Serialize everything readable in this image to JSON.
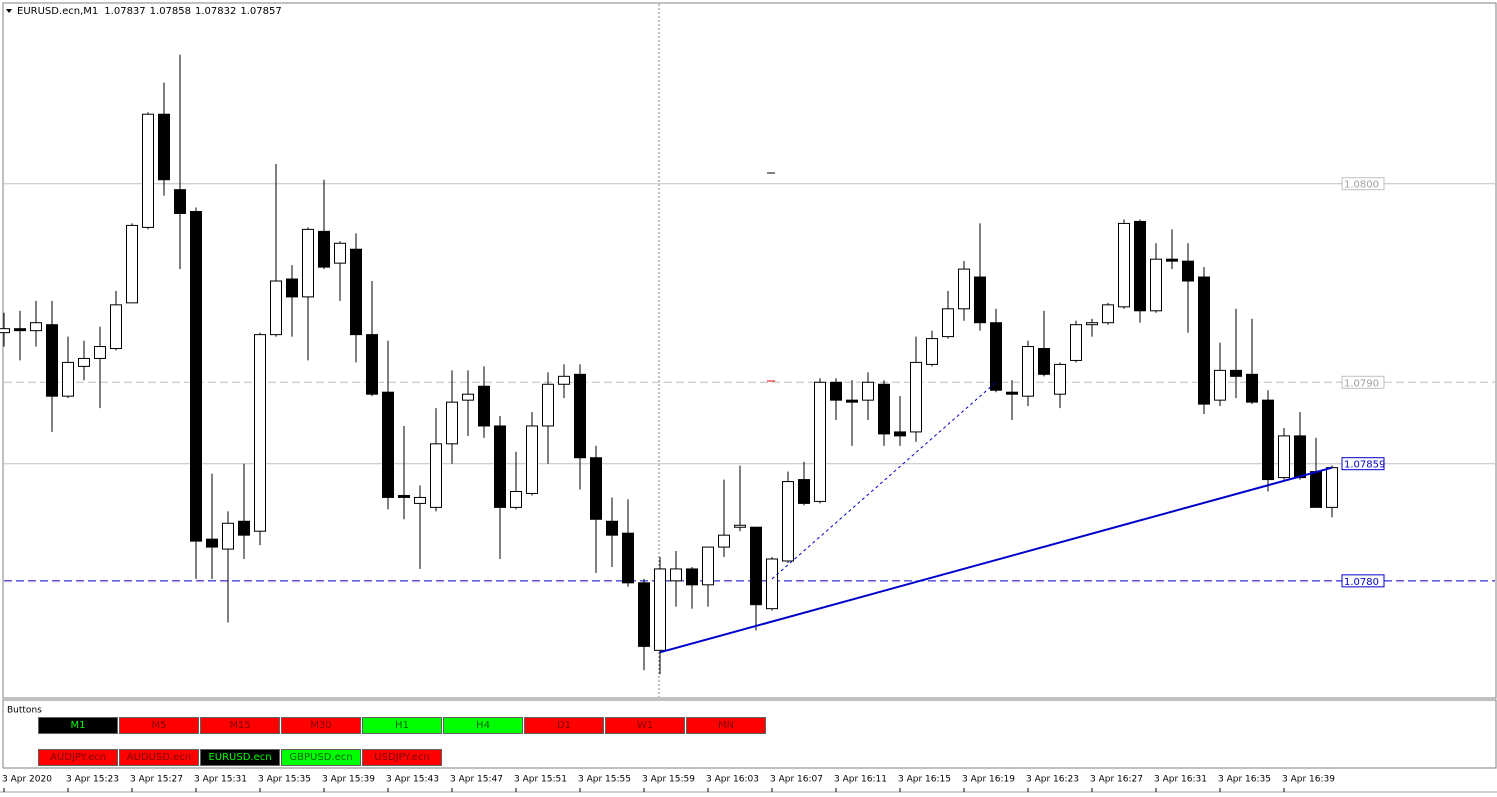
{
  "header": {
    "symbol": "EURUSD.ecn,M1"
  },
  "chart_data": {
    "type": "candlestick",
    "categories": [
      "3 Apr 2020",
      null,
      null,
      null,
      "3 Apr 15:23",
      null,
      null,
      null,
      "3 Apr 15:27",
      null,
      null,
      null,
      "3 Apr 15:31",
      null,
      null,
      null,
      "3 Apr 15:35",
      null,
      null,
      null,
      "3 Apr 15:39",
      null,
      null,
      null,
      "3 Apr 15:43",
      null,
      null,
      null,
      "3 Apr 15:47",
      null,
      null,
      null,
      "3 Apr 15:51",
      null,
      null,
      null,
      "3 Apr 15:55",
      null,
      null,
      null,
      "3 Apr 15:59",
      null,
      null,
      null,
      "3 Apr 16:03",
      null,
      null,
      null,
      "3 Apr 16:07",
      null,
      null,
      null,
      "3 Apr 16:11",
      null,
      null,
      null,
      "3 Apr 16:15",
      null,
      null,
      null,
      "3 Apr 16:19",
      null,
      null,
      null,
      "3 Apr 16:23",
      null,
      null,
      null,
      "3 Apr 16:27",
      null,
      null,
      null,
      "3 Apr 16:31",
      null,
      null,
      null,
      "3 Apr 16:35",
      null,
      null,
      null,
      "3 Apr 16:39",
      null,
      null,
      null
    ],
    "open": [
      1.07925,
      1.07927,
      1.07926,
      1.07929,
      1.07893,
      1.07908,
      1.07912,
      1.07917,
      1.0794,
      1.07978,
      1.08035,
      1.07997,
      1.07986,
      1.07821,
      1.07816,
      1.0783,
      1.07825,
      1.07924,
      1.07952,
      1.07943,
      1.07976,
      1.0796,
      1.07967,
      1.07924,
      1.07895,
      1.07843,
      1.07839,
      1.07837,
      1.07869,
      1.07891,
      1.07898,
      1.07878,
      1.07837,
      1.07844,
      1.07878,
      1.07899,
      1.07904,
      1.07862,
      1.0783,
      1.07824,
      1.07799,
      1.07765,
      1.078,
      1.07806,
      1.07798,
      1.07817,
      1.07827,
      1.07827,
      1.07786,
      1.0781,
      1.07851,
      1.0784,
      1.079,
      1.07891,
      1.07891,
      1.07899,
      1.07875,
      1.07875,
      1.07909,
      1.07923,
      1.07937,
      1.07953,
      1.0793,
      1.07895,
      1.07893,
      1.07917,
      1.07894,
      1.07911,
      1.07929,
      1.0793,
      1.07938,
      1.07981,
      1.07936,
      1.07962,
      1.07961,
      1.07953,
      1.07891,
      1.07906,
      1.07904,
      1.07891,
      1.07852,
      1.07873,
      1.07855,
      1.07837
    ],
    "high": [
      1.07935,
      1.07936,
      1.07941,
      1.07941,
      1.07923,
      1.07921,
      1.07928,
      1.07946,
      1.0798,
      1.08036,
      1.08051,
      1.08065,
      1.07988,
      1.07854,
      1.07835,
      1.07859,
      1.07925,
      1.0801,
      1.07959,
      1.07978,
      1.08002,
      1.07971,
      1.07975,
      1.07951,
      1.07921,
      1.07878,
      1.07848,
      1.07887,
      1.07906,
      1.07906,
      1.07908,
      1.07883,
      1.07865,
      1.07885,
      1.07905,
      1.07909,
      1.07909,
      1.07868,
      1.07842,
      1.07841,
      1.07801,
      1.07812,
      1.07815,
      1.07807,
      1.07817,
      1.07851,
      1.07858,
      1.07827,
      1.07812,
      1.07855,
      1.0786,
      1.07902,
      1.07902,
      1.07901,
      1.07905,
      1.07901,
      1.07893,
      1.07923,
      1.07926,
      1.07946,
      1.07961,
      1.0798,
      1.07937,
      1.07901,
      1.07921,
      1.07936,
      1.0791,
      1.07931,
      1.07932,
      1.0794,
      1.07982,
      1.07982,
      1.0797,
      1.07977,
      1.0797,
      1.07958,
      1.0792,
      1.07937,
      1.07932,
      1.07896,
      1.07877,
      1.07885,
      1.07872,
      1.07858
    ],
    "low": [
      1.07918,
      1.07911,
      1.07918,
      1.07875,
      1.07892,
      1.07901,
      1.07887,
      1.07916,
      1.0794,
      1.07977,
      1.07994,
      1.07957,
      1.07801,
      1.07801,
      1.07779,
      1.07811,
      1.07818,
      1.07923,
      1.07923,
      1.07911,
      1.07957,
      1.07941,
      1.0791,
      1.07893,
      1.07836,
      1.07831,
      1.07806,
      1.07835,
      1.07859,
      1.07873,
      1.07872,
      1.07811,
      1.07836,
      1.07843,
      1.07859,
      1.07892,
      1.07846,
      1.07804,
      1.07807,
      1.07797,
      1.07755,
      1.07753,
      1.07787,
      1.07786,
      1.07787,
      1.07812,
      1.07825,
      1.07775,
      1.07785,
      1.07809,
      1.07838,
      1.07839,
      1.07881,
      1.07868,
      1.07881,
      1.07868,
      1.07868,
      1.0787,
      1.07908,
      1.07922,
      1.07931,
      1.07926,
      1.07895,
      1.07881,
      1.07888,
      1.07903,
      1.07887,
      1.0791,
      1.07923,
      1.07929,
      1.07937,
      1.0793,
      1.07935,
      1.07957,
      1.07925,
      1.07884,
      1.07888,
      1.07892,
      1.07889,
      1.07845,
      1.07851,
      1.07851,
      1.07837,
      1.07832
    ],
    "close": [
      1.07927,
      1.07926,
      1.0793,
      1.07893,
      1.0791,
      1.07912,
      1.07918,
      1.07939,
      1.07979,
      1.08035,
      1.08002,
      1.07985,
      1.0782,
      1.07817,
      1.07829,
      1.07823,
      1.07924,
      1.07951,
      1.07943,
      1.07977,
      1.07958,
      1.0797,
      1.07924,
      1.07894,
      1.07842,
      1.07842,
      1.07842,
      1.07869,
      1.0789,
      1.07894,
      1.07878,
      1.07837,
      1.07845,
      1.07878,
      1.07899,
      1.07903,
      1.07862,
      1.07831,
      1.07823,
      1.07799,
      1.07767,
      1.07806,
      1.07806,
      1.07798,
      1.07817,
      1.07823,
      1.07828,
      1.07788,
      1.07811,
      1.0785,
      1.07839,
      1.079,
      1.07891,
      1.0789,
      1.079,
      1.07874,
      1.07873,
      1.0791,
      1.07922,
      1.07937,
      1.07957,
      1.0793,
      1.07896,
      1.07894,
      1.07918,
      1.07904,
      1.07909,
      1.07929,
      1.0793,
      1.07939,
      1.0798,
      1.07936,
      1.07962,
      1.07961,
      1.07951,
      1.07889,
      1.07906,
      1.07903,
      1.0789,
      1.07851,
      1.07873,
      1.07852,
      1.07837,
      1.07857
    ],
    "ylim": [
      1.07741,
      1.0809
    ],
    "hlines": [
      {
        "value": 1.08,
        "label": "1.0800",
        "color": "#c0c0c0",
        "dashed": false
      },
      {
        "value": 1.079,
        "label": "1.0790",
        "color": "#c0c0c0",
        "dashed": true
      },
      {
        "value": 1.078,
        "label": "1.0780",
        "color": "#0000cc",
        "dashed": true
      }
    ],
    "price_line": 1.07859,
    "trendlines": [
      {
        "x": [
          41,
          83
        ],
        "y": [
          1.07764,
          1.07857
        ],
        "color": "#0000cc",
        "dashed": false
      },
      {
        "x": [
          48,
          62
        ],
        "y": [
          1.07801,
          1.079
        ],
        "color": "#0000cc",
        "dashed": true
      }
    ]
  },
  "buttons_panel": {
    "title": "Buttons",
    "timeframes": [
      {
        "label": "M1",
        "bg": "#000000",
        "fg": "#00ff00"
      },
      {
        "label": "M5",
        "bg": "#ff0000",
        "fg": "#800000"
      },
      {
        "label": "M15",
        "bg": "#ff0000",
        "fg": "#800000"
      },
      {
        "label": "M30",
        "bg": "#ff0000",
        "fg": "#800000"
      },
      {
        "label": "H1",
        "bg": "#00ff00",
        "fg": "#006400"
      },
      {
        "label": "H4",
        "bg": "#00ff00",
        "fg": "#006400"
      },
      {
        "label": "D1",
        "bg": "#ff0000",
        "fg": "#800000"
      },
      {
        "label": "W1",
        "bg": "#ff0000",
        "fg": "#800000"
      },
      {
        "label": "MN",
        "bg": "#ff0000",
        "fg": "#800000"
      }
    ],
    "symbols": [
      {
        "label": "AUDJPY.ecn",
        "bg": "#ff0000",
        "fg": "#800000"
      },
      {
        "label": "AUDUSD.ecn",
        "bg": "#ff0000",
        "fg": "#800000"
      },
      {
        "label": "EURUSD.ecn",
        "bg": "#000000",
        "fg": "#00ff00"
      },
      {
        "label": "GBPUSD.ecn",
        "bg": "#00ff00",
        "fg": "#006400"
      },
      {
        "label": "USDJPY.ecn",
        "bg": "#ff0000",
        "fg": "#800000"
      }
    ]
  }
}
